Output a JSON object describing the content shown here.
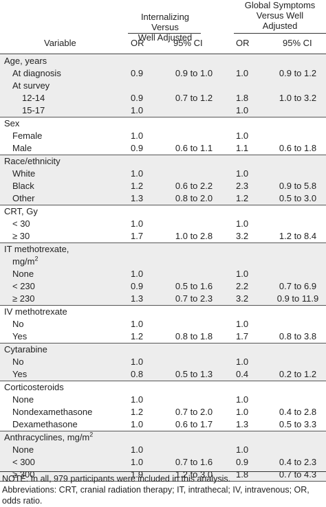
{
  "header": {
    "group1": [
      "Internalizing Versus",
      "Well Adjusted"
    ],
    "group2": [
      "Global Symptoms",
      "Versus Well",
      "Adjusted"
    ],
    "col_variable": "Variable",
    "col_or1": "OR",
    "col_ci1": "95% CI",
    "col_or2": "OR",
    "col_ci2": "95% CI"
  },
  "sections": [
    {
      "rows": [
        {
          "label": "Age, years",
          "indent": 0
        },
        {
          "label": "At diagnosis",
          "indent": 1,
          "or1": "0.9",
          "ci1": "0.9 to 1.0",
          "or2": "1.0",
          "ci2": "0.9 to 1.2"
        },
        {
          "label": "At survey",
          "indent": 1
        },
        {
          "label": "12-14",
          "indent": 2,
          "or1": "0.9",
          "ci1": "0.7 to 1.2",
          "or2": "1.8",
          "ci2": "1.0 to 3.2"
        },
        {
          "label": "15-17",
          "indent": 2,
          "or1": "1.0",
          "or2": "1.0"
        }
      ]
    },
    {
      "rows": [
        {
          "label": "Sex",
          "indent": 0
        },
        {
          "label": "Female",
          "indent": 1,
          "or1": "1.0",
          "or2": "1.0"
        },
        {
          "label": "Male",
          "indent": 1,
          "or1": "0.9",
          "ci1": "0.6 to 1.1",
          "or2": "1.1",
          "ci2": "0.6 to 1.8"
        }
      ]
    },
    {
      "rows": [
        {
          "label": "Race/ethnicity",
          "indent": 0
        },
        {
          "label": "White",
          "indent": 1,
          "or1": "1.0",
          "or2": "1.0"
        },
        {
          "label": "Black",
          "indent": 1,
          "or1": "1.2",
          "ci1": "0.6 to 2.2",
          "or2": "2.3",
          "ci2": "0.9 to 5.8"
        },
        {
          "label": "Other",
          "indent": 1,
          "or1": "1.3",
          "ci1": "0.8 to 2.0",
          "or2": "1.2",
          "ci2": "0.5 to 3.0"
        }
      ]
    },
    {
      "rows": [
        {
          "label": "CRT, Gy",
          "indent": 0
        },
        {
          "label": "< 30",
          "indent": 1,
          "or1": "1.0",
          "or2": "1.0"
        },
        {
          "label": "≥ 30",
          "indent": 1,
          "or1": "1.7",
          "ci1": "1.0 to 2.8",
          "or2": "3.2",
          "ci2": "1.2 to 8.4"
        }
      ]
    },
    {
      "rows": [
        {
          "label": "IT methotrexate,",
          "label2": "mg/m",
          "sup": "2",
          "indent": 0
        },
        {
          "label": "None",
          "indent": 1,
          "or1": "1.0",
          "or2": "1.0"
        },
        {
          "label": "< 230",
          "indent": 1,
          "or1": "0.9",
          "ci1": "0.5 to 1.6",
          "or2": "2.2",
          "ci2": "0.7 to 6.9"
        },
        {
          "label": "≥ 230",
          "indent": 1,
          "or1": "1.3",
          "ci1": "0.7 to 2.3",
          "or2": "3.2",
          "ci2": "0.9 to 11.9"
        }
      ]
    },
    {
      "rows": [
        {
          "label": "IV methotrexate",
          "indent": 0
        },
        {
          "label": "No",
          "indent": 1,
          "or1": "1.0",
          "or2": "1.0"
        },
        {
          "label": "Yes",
          "indent": 1,
          "or1": "1.2",
          "ci1": "0.8 to 1.8",
          "or2": "1.7",
          "ci2": "0.8 to 3.8"
        }
      ]
    },
    {
      "rows": [
        {
          "label": "Cytarabine",
          "indent": 0
        },
        {
          "label": "No",
          "indent": 1,
          "or1": "1.0",
          "or2": "1.0"
        },
        {
          "label": "Yes",
          "indent": 1,
          "or1": "0.8",
          "ci1": "0.5 to 1.3",
          "or2": "0.4",
          "ci2": "0.2 to 1.2"
        }
      ]
    },
    {
      "rows": [
        {
          "label": "Corticosteroids",
          "indent": 0
        },
        {
          "label": "None",
          "indent": 1,
          "or1": "1.0",
          "or2": "1.0"
        },
        {
          "label": "Nondexamethasone",
          "indent": 1,
          "or1": "1.2",
          "ci1": "0.7 to 2.0",
          "or2": "1.0",
          "ci2": "0.4 to 2.8"
        },
        {
          "label": "Dexamethasone",
          "indent": 1,
          "or1": "1.0",
          "ci1": "0.6 to 1.7",
          "or2": "1.3",
          "ci2": "0.5 to 3.3"
        }
      ]
    },
    {
      "rows": [
        {
          "label": "Anthracyclines, mg/m",
          "sup": "2",
          "indent": 0
        },
        {
          "label": "None",
          "indent": 1,
          "or1": "1.0",
          "or2": "1.0"
        },
        {
          "label": "< 300",
          "indent": 1,
          "or1": "1.0",
          "ci1": "0.7 to 1.6",
          "or2": "0.9",
          "ci2": "0.4 to 2.3"
        },
        {
          "label": "≥ 300",
          "indent": 1,
          "or1": "1.9",
          "ci1": "1.2 to 3.0",
          "or2": "1.8",
          "ci2": "0.7 to 4.3"
        }
      ]
    }
  ],
  "notes": [
    "NOTE. In all, 979 participants were included in this analysis.",
    "Abbreviations: CRT, cranial radiation therapy; IT, intrathecal; IV, intravenous; OR, odds ratio."
  ]
}
